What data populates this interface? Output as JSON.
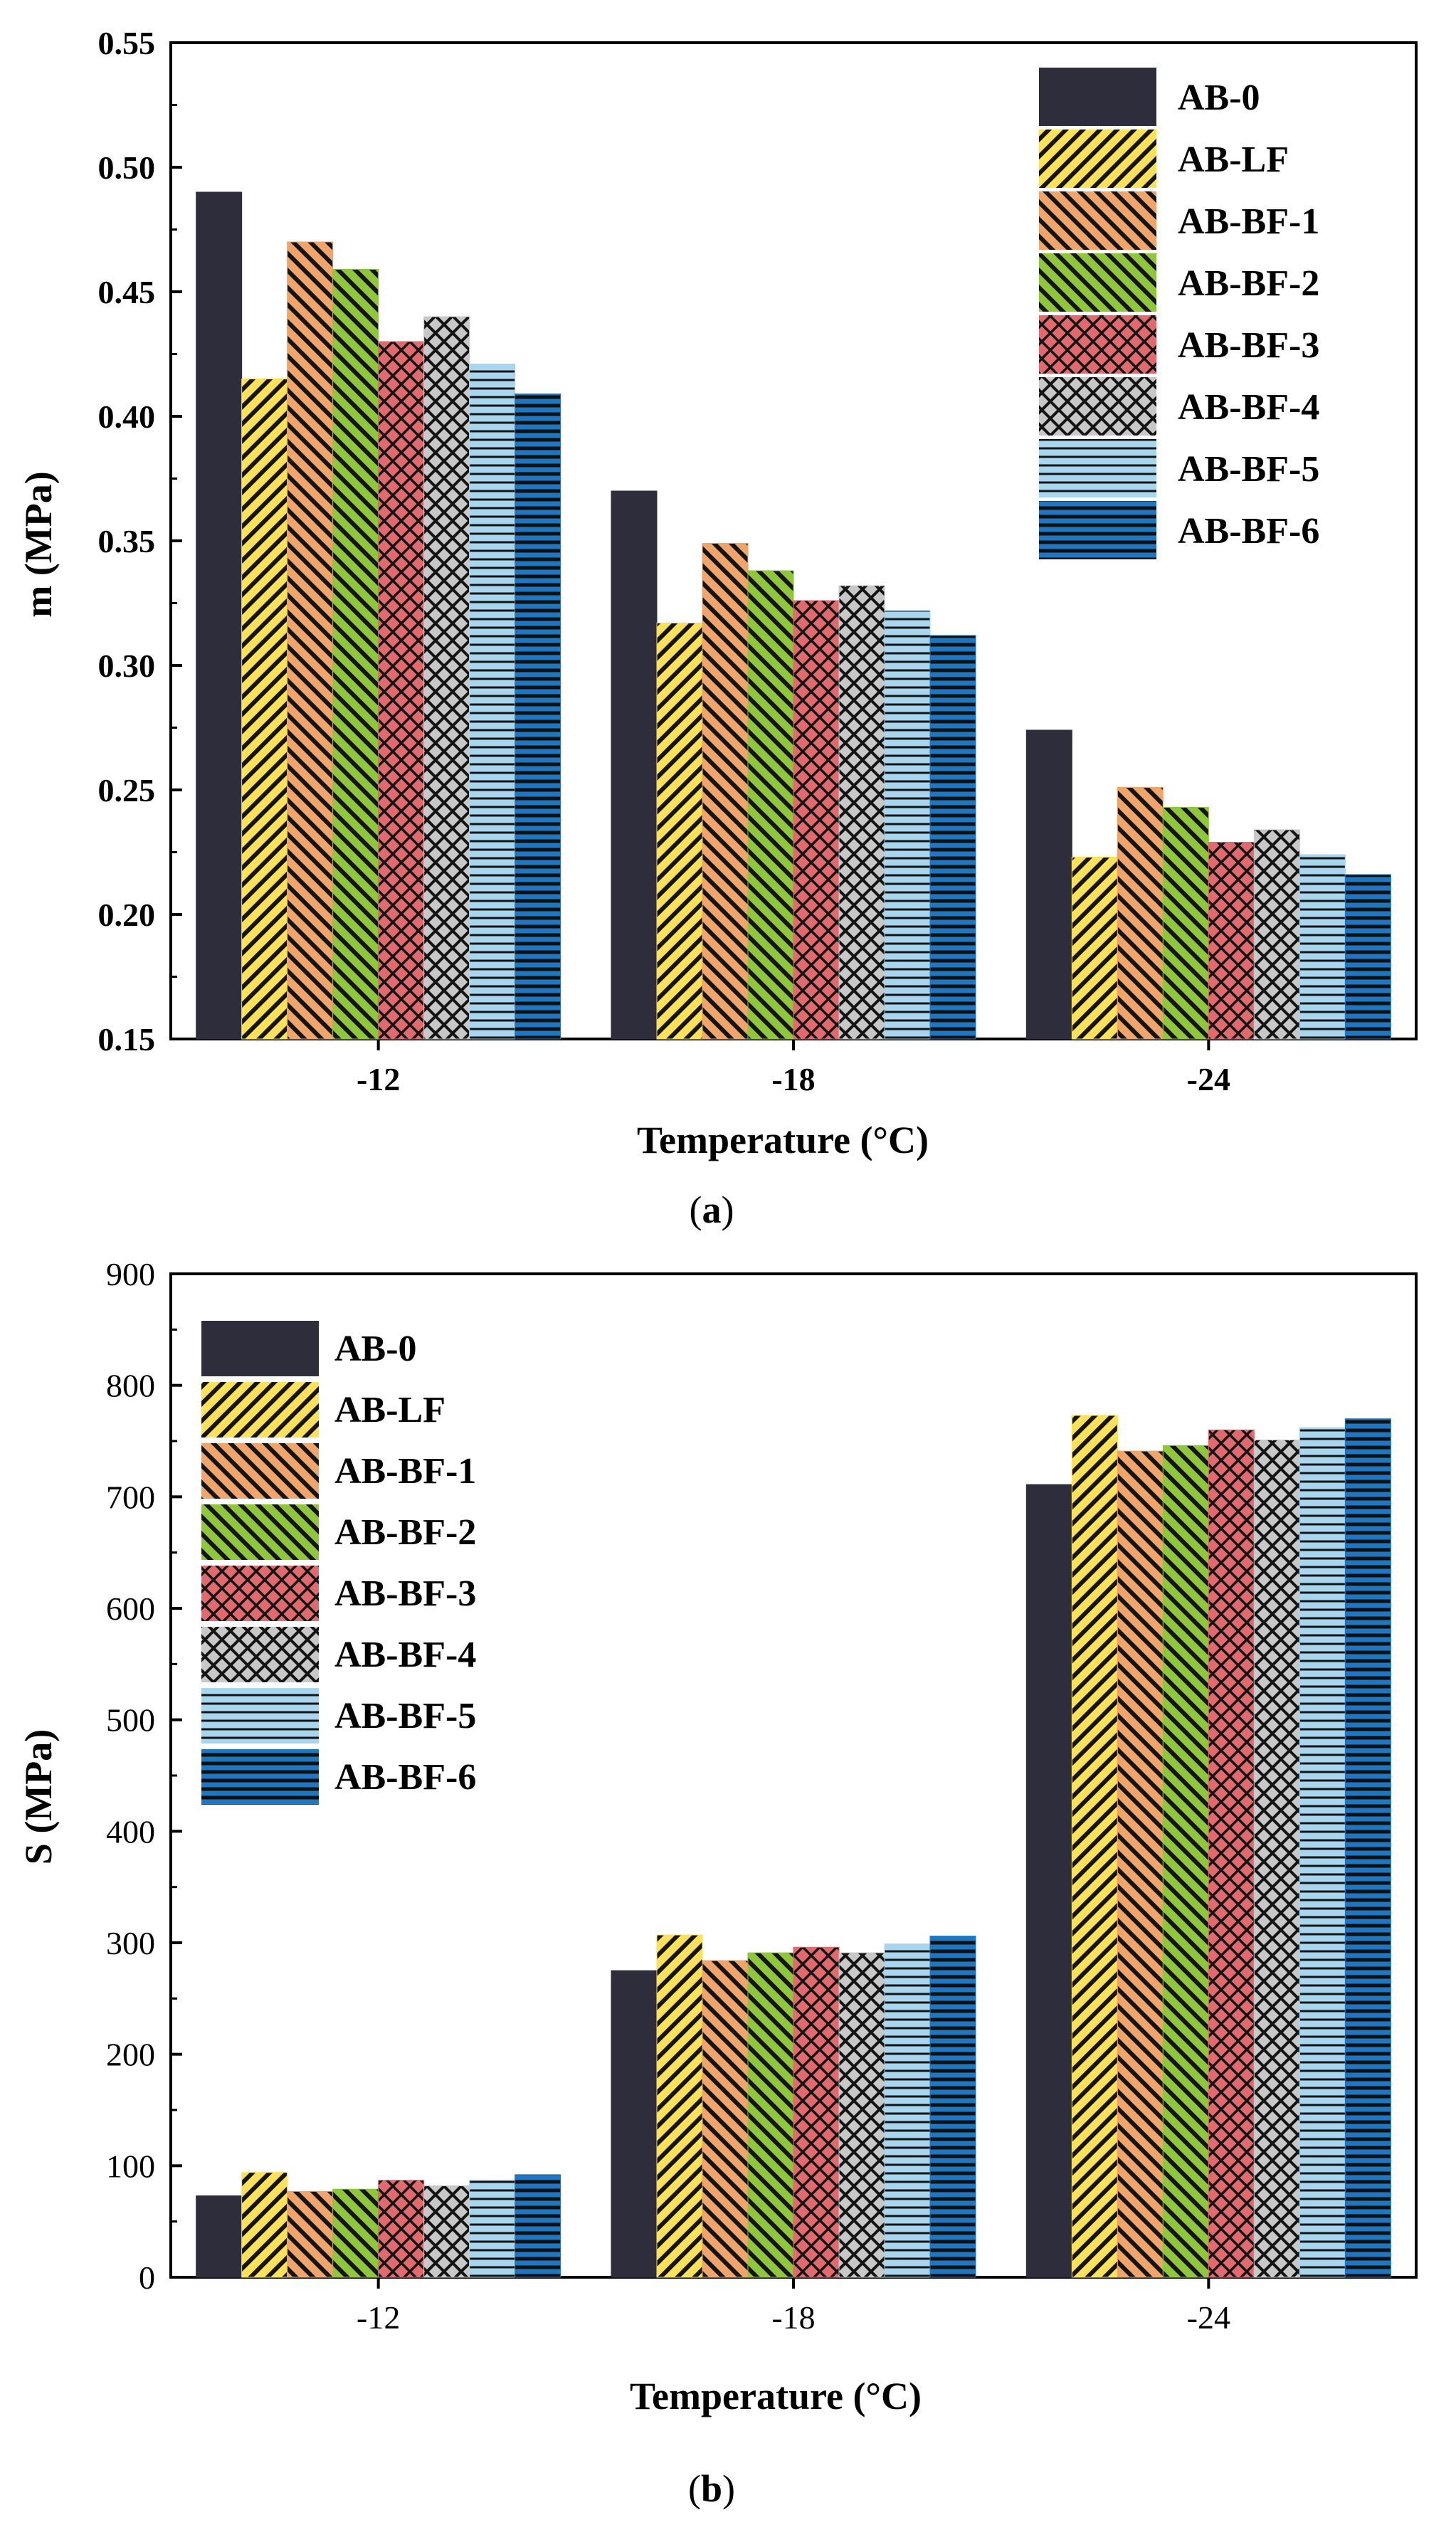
{
  "series": [
    {
      "name": "AB-0",
      "color": "#2d2d3c",
      "pattern": "solid",
      "fg": "#2d2d3c"
    },
    {
      "name": "AB-LF",
      "color": "#fde15a",
      "pattern": "diag-fwd",
      "fg": "#141414"
    },
    {
      "name": "AB-BF-1",
      "color": "#f0a46a",
      "pattern": "diag-back",
      "fg": "#141414"
    },
    {
      "name": "AB-BF-2",
      "color": "#8fc63a",
      "pattern": "diag-back",
      "fg": "#141414"
    },
    {
      "name": "AB-BF-3",
      "color": "#e06a6e",
      "pattern": "crosshatch",
      "fg": "#141414"
    },
    {
      "name": "AB-BF-4",
      "color": "#c8c8c8",
      "pattern": "diag-cross",
      "fg": "#141414"
    },
    {
      "name": "AB-BF-5",
      "color": "#a9d6ef",
      "pattern": "horizontal",
      "fg": "#141414"
    },
    {
      "name": "AB-BF-6",
      "color": "#1f76c3",
      "pattern": "horizontal-thick",
      "fg": "#111111"
    }
  ],
  "chart_data": [
    {
      "type": "bar",
      "panel_label": "a",
      "xlabel": "Temperature (°C)",
      "ylabel": "m (MPa)",
      "ylim": [
        0.15,
        0.55
      ],
      "yticks": [
        "0.15",
        "0.20",
        "0.25",
        "0.30",
        "0.35",
        "0.40",
        "0.45",
        "0.50",
        "0.55"
      ],
      "ytick_values": [
        0.15,
        0.2,
        0.25,
        0.3,
        0.35,
        0.4,
        0.45,
        0.5,
        0.55
      ],
      "categories": [
        "-12",
        "-18",
        "-24"
      ],
      "legend_position": "top-right",
      "series": [
        {
          "name": "AB-0",
          "values": [
            0.49,
            0.37,
            0.274
          ]
        },
        {
          "name": "AB-LF",
          "values": [
            0.415,
            0.317,
            0.223
          ]
        },
        {
          "name": "AB-BF-1",
          "values": [
            0.47,
            0.349,
            0.251
          ]
        },
        {
          "name": "AB-BF-2",
          "values": [
            0.459,
            0.338,
            0.243
          ]
        },
        {
          "name": "AB-BF-3",
          "values": [
            0.43,
            0.326,
            0.229
          ]
        },
        {
          "name": "AB-BF-4",
          "values": [
            0.44,
            0.332,
            0.234
          ]
        },
        {
          "name": "AB-BF-5",
          "values": [
            0.421,
            0.322,
            0.224
          ]
        },
        {
          "name": "AB-BF-6",
          "values": [
            0.409,
            0.312,
            0.216
          ]
        }
      ]
    },
    {
      "type": "bar",
      "panel_label": "b",
      "xlabel": "Temperature (°C)",
      "ylabel": "S (MPa)",
      "ylim": [
        0,
        900
      ],
      "yticks": [
        "0",
        "100",
        "200",
        "300",
        "400",
        "500",
        "600",
        "700",
        "800",
        "900"
      ],
      "ytick_values": [
        0,
        100,
        200,
        300,
        400,
        500,
        600,
        700,
        800,
        900
      ],
      "categories": [
        "-12",
        "-18",
        "-24"
      ],
      "legend_position": "top-left",
      "series": [
        {
          "name": "AB-0",
          "values": [
            73,
            275,
            711
          ]
        },
        {
          "name": "AB-LF",
          "values": [
            94,
            307,
            773
          ]
        },
        {
          "name": "AB-BF-1",
          "values": [
            77,
            284,
            741
          ]
        },
        {
          "name": "AB-BF-2",
          "values": [
            79,
            291,
            746
          ]
        },
        {
          "name": "AB-BF-3",
          "values": [
            87,
            296,
            760
          ]
        },
        {
          "name": "AB-BF-4",
          "values": [
            82,
            291,
            751
          ]
        },
        {
          "name": "AB-BF-5",
          "values": [
            87,
            299,
            762
          ]
        },
        {
          "name": "AB-BF-6",
          "values": [
            92,
            306,
            770
          ]
        }
      ]
    }
  ]
}
